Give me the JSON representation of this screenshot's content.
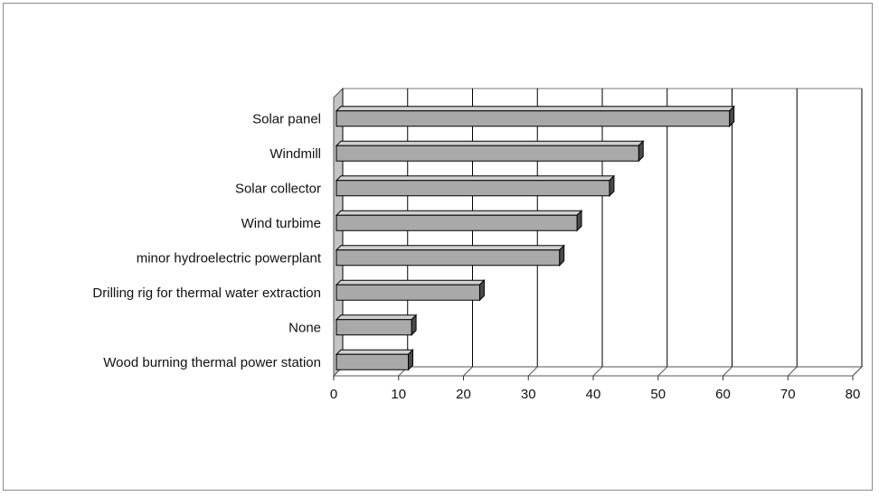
{
  "chart_data": {
    "type": "bar",
    "orientation": "horizontal",
    "style": "3d",
    "title": "",
    "xlabel": "",
    "ylabel": "",
    "categories": [
      "Solar panel",
      "Windmill",
      "Solar collector",
      "Wind turbime",
      "minor hydroelectric powerplant",
      "Drilling rig for thermal water extraction",
      "None",
      "Wood burning thermal power station"
    ],
    "values": [
      61,
      47,
      42.5,
      37.5,
      34.8,
      22.5,
      12,
      11.5
    ],
    "xlim": [
      0,
      80
    ],
    "xticks": [
      "0",
      "10",
      "20",
      "30",
      "40",
      "50",
      "60",
      "70",
      "80"
    ],
    "grid": true,
    "legend": "none",
    "colors": {
      "bar_front": "#a9a9a9",
      "bar_top": "#d0d0d0",
      "bar_side": "#4a4a4a",
      "wall": "#c4c4c4",
      "grid": "#000000"
    }
  }
}
